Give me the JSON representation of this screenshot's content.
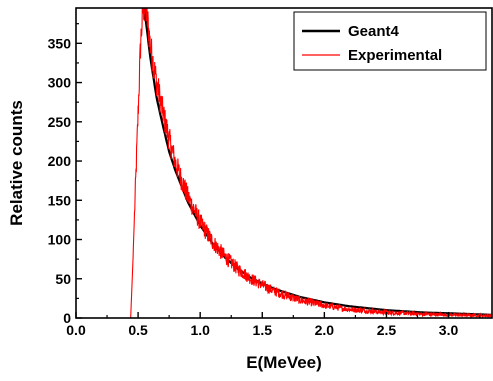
{
  "chart_data": {
    "type": "line",
    "xlabel": "E(MeVee)",
    "ylabel": "Relative counts",
    "xlim": [
      0.0,
      3.35
    ],
    "ylim": [
      0,
      395
    ],
    "xticks": [
      "0.0",
      "0.5",
      "1.0",
      "1.5",
      "2.0",
      "2.5",
      "3.0"
    ],
    "yticks": [
      "0",
      "50",
      "100",
      "150",
      "200",
      "250",
      "300",
      "350"
    ],
    "grid": false,
    "legend_position": "top-right",
    "series": [
      {
        "name": "Geant4",
        "color": "#000000",
        "x": [
          0.55,
          0.6,
          0.65,
          0.7,
          0.75,
          0.8,
          0.9,
          1.0,
          1.1,
          1.2,
          1.3,
          1.4,
          1.5,
          1.6,
          1.8,
          2.0,
          2.2,
          2.5,
          2.8,
          3.0,
          3.35
        ],
        "y": [
          395,
          330,
          280,
          245,
          212,
          188,
          148,
          118,
          95,
          77,
          63,
          52,
          44,
          37,
          27,
          20,
          15,
          10,
          7,
          6,
          4
        ]
      },
      {
        "name": "Experimental",
        "color": "#ff0000",
        "x": [
          0.0,
          0.44,
          0.46,
          0.48,
          0.5,
          0.52,
          0.54,
          0.56,
          0.58,
          0.6,
          0.65,
          0.7,
          0.75,
          0.8,
          0.9,
          1.0,
          1.1,
          1.2,
          1.3,
          1.4,
          1.5,
          1.6,
          1.8,
          2.0,
          2.2,
          2.5,
          2.8,
          3.0,
          3.35
        ],
        "y": [
          0,
          0,
          80,
          170,
          260,
          350,
          395,
          395,
          375,
          345,
          300,
          262,
          228,
          198,
          155,
          122,
          97,
          78,
          63,
          51,
          42,
          34,
          23,
          16,
          11,
          7,
          5,
          4,
          3
        ]
      }
    ]
  }
}
